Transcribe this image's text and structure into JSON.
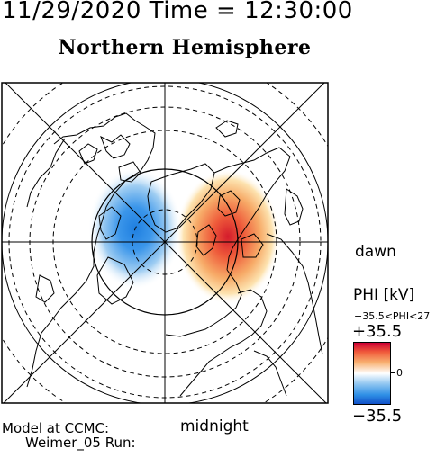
{
  "header": {
    "datetime": "11/29/2020 Time = 12:30:00",
    "title": "Northern Hemisphere"
  },
  "labels": {
    "dawn": "dawn",
    "midnight": "midnight"
  },
  "credit": {
    "line1": "Model at CCMC:",
    "line2": "Weimer_05 Run:"
  },
  "colorbar": {
    "title": "PHI [kV]",
    "range_text": "−35.5<PHI<27",
    "max_label": "+35.5",
    "zero_label": "0",
    "min_label": "−35.5",
    "colors": {
      "positive": "#cc0033",
      "mid_positive": "#f8b070",
      "zero": "#ffffff",
      "mid_negative": "#8cc4f0",
      "negative": "#1050c8"
    }
  },
  "map": {
    "type": "polar-stereographic",
    "grid": true,
    "dashed_latitude_circles": true,
    "potential_cells": [
      {
        "sign": "negative",
        "side": "dusk"
      },
      {
        "sign": "positive",
        "side": "dawn"
      }
    ]
  }
}
